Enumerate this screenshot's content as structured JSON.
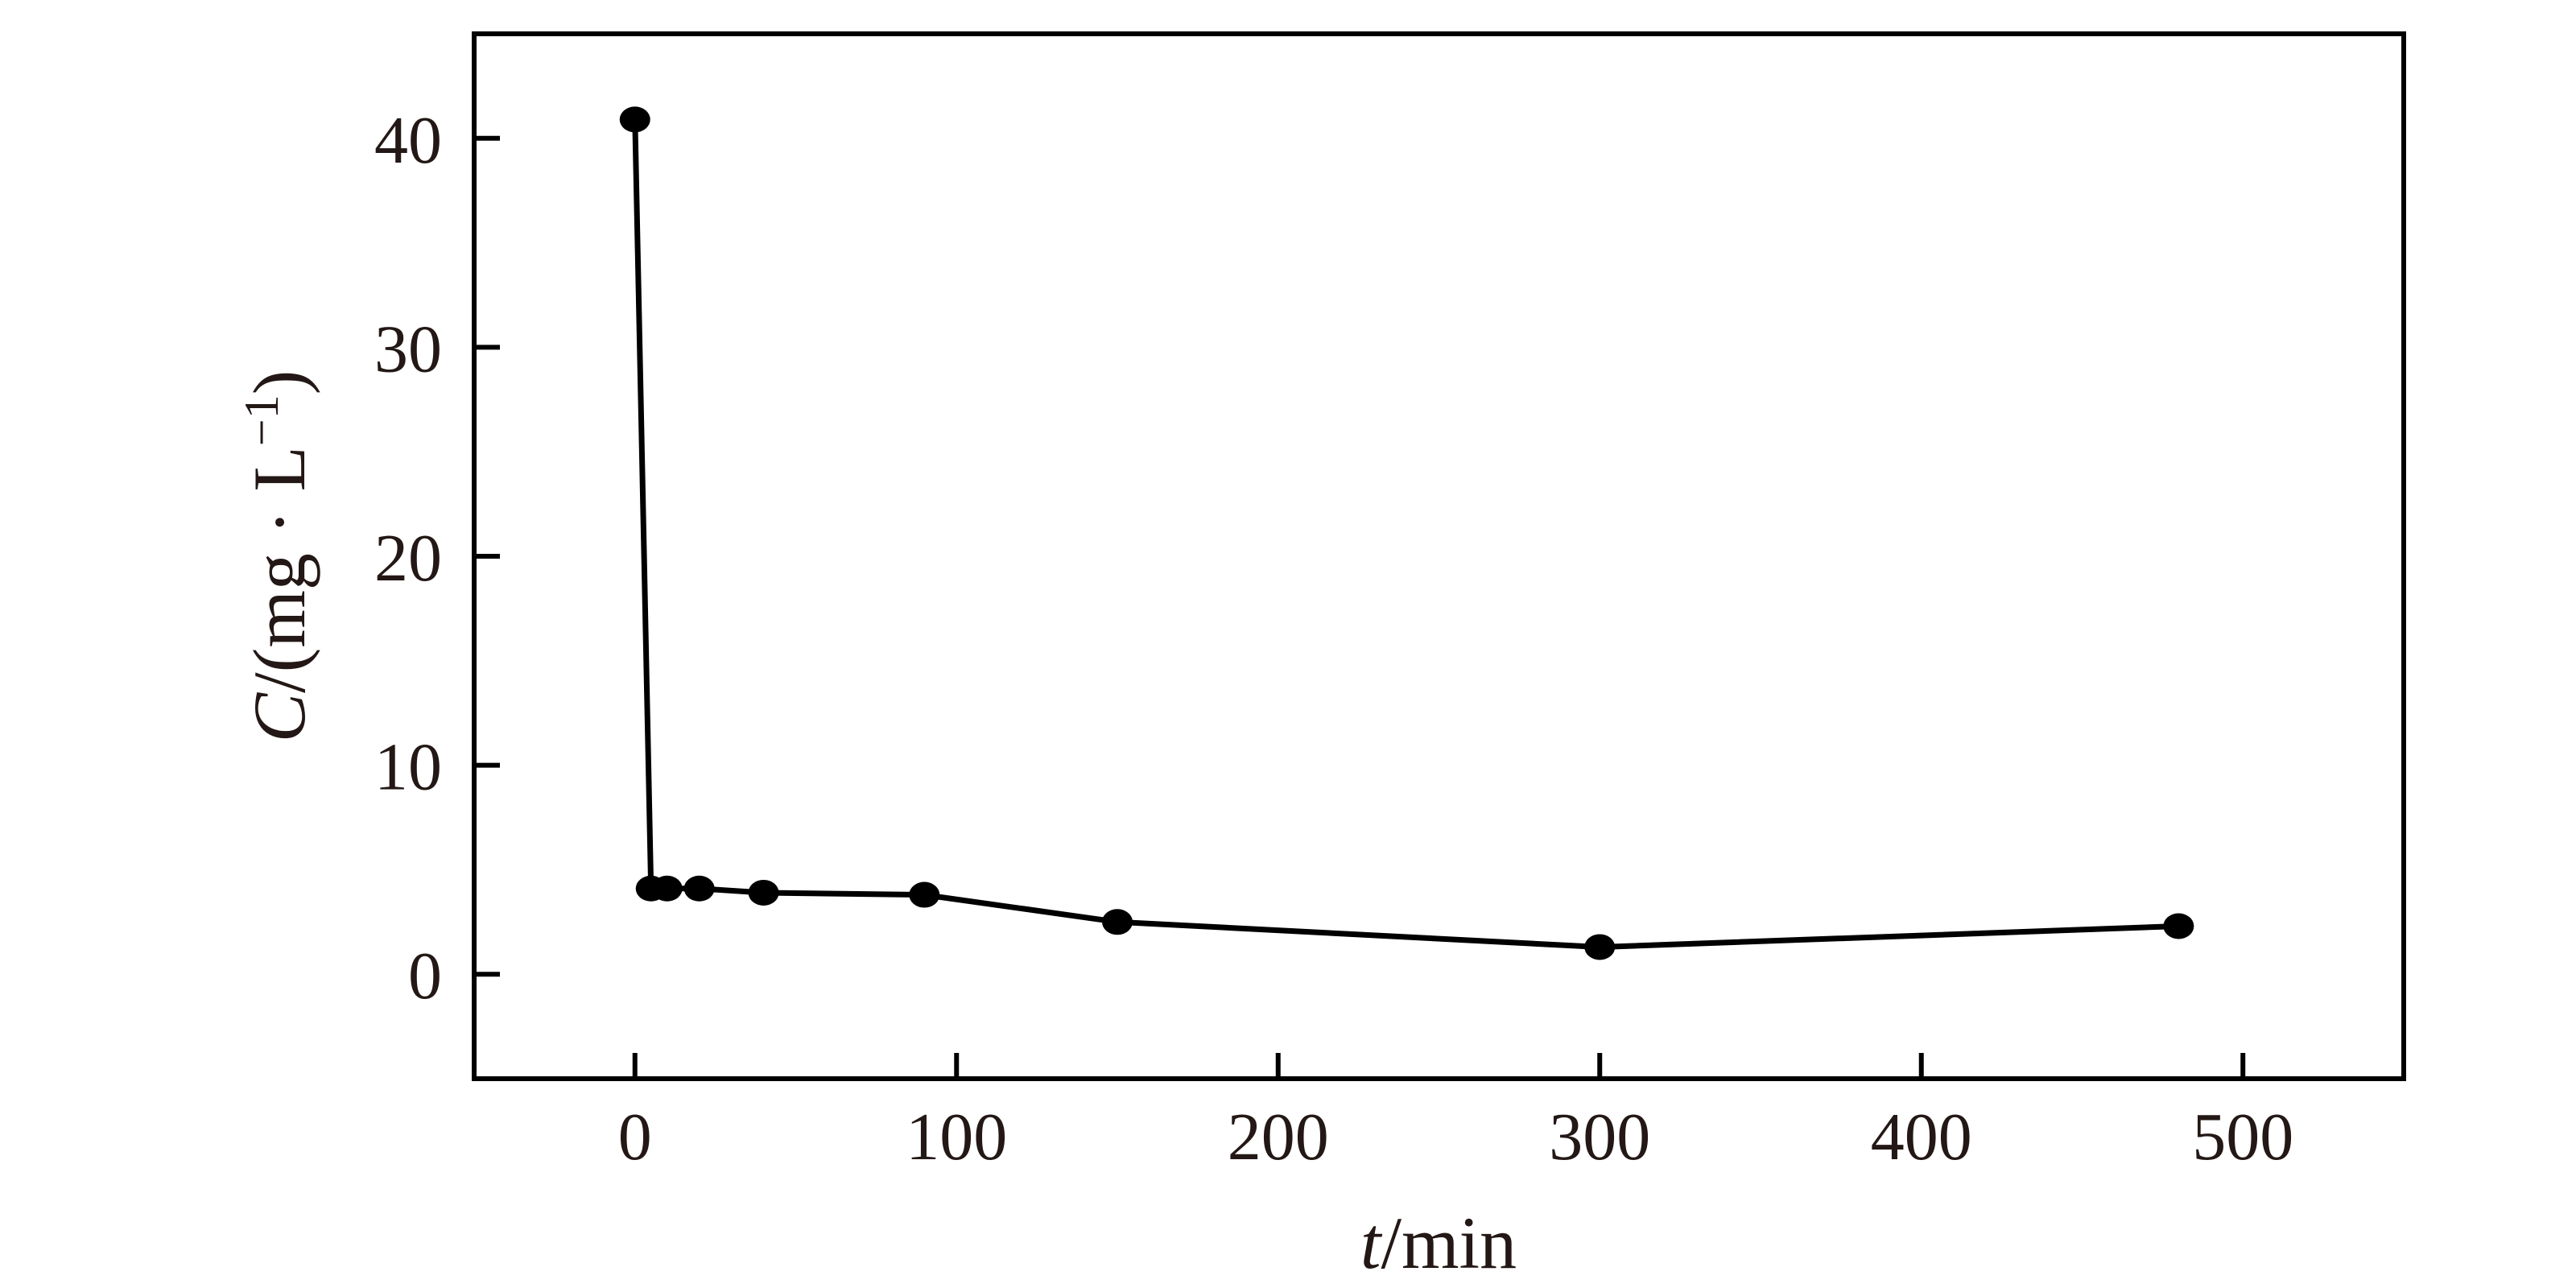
{
  "chart_data": {
    "type": "line",
    "title": "",
    "xlabel": {
      "var": "t",
      "unit": "/min"
    },
    "ylabel": {
      "var": "C",
      "unit_pre": "/(mg · L",
      "sup": "−1",
      "unit_post": ")"
    },
    "xlim": [
      -50,
      550
    ],
    "ylim": [
      -5,
      45
    ],
    "xticks": [
      0,
      100,
      200,
      300,
      400,
      500
    ],
    "yticks": [
      0,
      10,
      20,
      30,
      40
    ],
    "grid": false,
    "legend": "none",
    "series": [
      {
        "x": [
          0,
          5,
          10,
          20,
          40,
          90,
          150,
          300,
          480
        ],
        "y": [
          40.9,
          4.1,
          4.1,
          4.1,
          3.9,
          3.8,
          2.5,
          1.3,
          2.3
        ]
      }
    ],
    "color": "#000000"
  }
}
